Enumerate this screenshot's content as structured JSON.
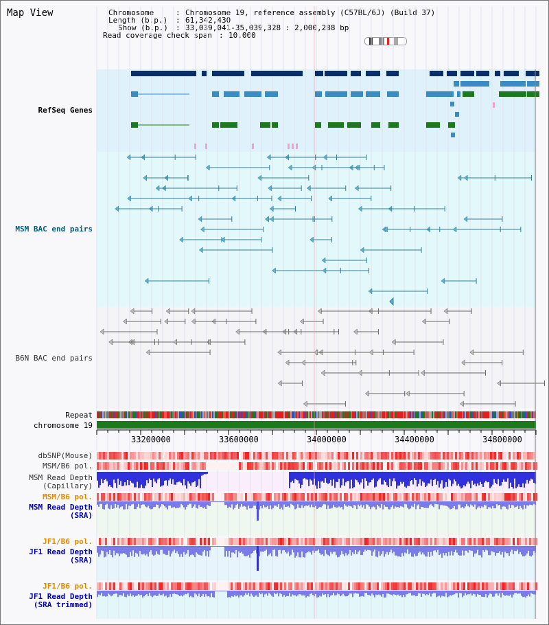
{
  "title": "Map View",
  "header": {
    "chromosome_key": "Chromosome",
    "chromosome_val": "Chromosome 19, reference assembly (C57BL/6J) (Build 37)",
    "length_key": "Length (b.p.)",
    "length_val": "61,342,430",
    "show_key": "Show (b.p.)",
    "show_val": "33,039,041-35,039,328 : 2,000,288 bp",
    "coverage_key": "Read coverage check span",
    "coverage_val": "10,000"
  },
  "tracks": {
    "refseq": "RefSeq Genes",
    "msm_bac": "MSM BAC end pairs",
    "b6n_bac": "B6N BAC end pairs",
    "repeat": "Repeat",
    "chromosome": "chromosome 19",
    "dbsnp": "dbSNP(Mouse)",
    "msm_b6_pol_1": "MSM/B6 pol.",
    "msm_read_depth_cap_1": "MSM Read Depth",
    "msm_read_depth_cap_2": "(Capillary)",
    "msm_b6_pol_2": "MSM/B6 pol.",
    "msm_read_depth_sra_1": "MSM Read Depth",
    "msm_read_depth_sra_2": "(SRA)",
    "jf1_b6_pol_1": "JF1/B6 pol.",
    "jf1_read_depth_sra_1": "JF1 Read Depth",
    "jf1_read_depth_sra_2": "(SRA)",
    "jf1_b6_pol_2": "JF1/B6 pol.",
    "jf1_read_depth_trim_1": "JF1 Read Depth",
    "jf1_read_depth_trim_2": "(SRA trimmed)"
  },
  "axis": {
    "ticks": [
      "33200000",
      "33600000",
      "34000000",
      "34400000",
      "34800000"
    ]
  },
  "colors": {
    "refseq_dark": "#0a2e6b",
    "refseq_mid": "#3a8cc0",
    "refseq_green": "#1c7a1c",
    "msm_bac": "#2e7d99",
    "b6n_bac": "#666666",
    "label_blue": "#0000aa",
    "label_teal": "#005f7f",
    "label_orange": "#e08a00",
    "depth_blue": "#3030dd",
    "depth_light": "#7a7ae8"
  }
}
